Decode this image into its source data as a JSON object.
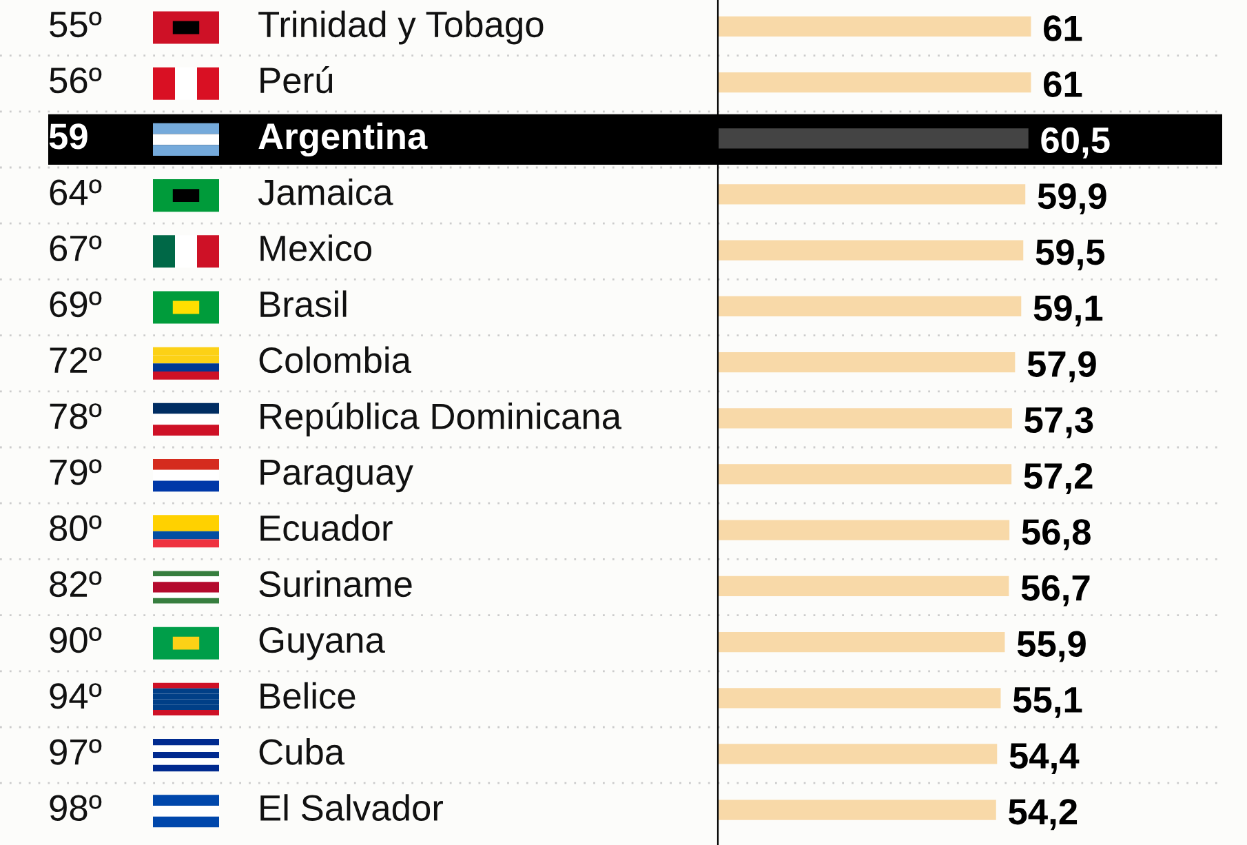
{
  "chart_data": {
    "type": "bar",
    "orientation": "horizontal",
    "categories": [
      "Trinidad y Tobago",
      "Perú",
      "Argentina",
      "Jamaica",
      "Mexico",
      "Brasil",
      "Colombia",
      "República Dominicana",
      "Paraguay",
      "Ecuador",
      "Suriname",
      "Guyana",
      "Belice",
      "Cuba",
      "El Salvador"
    ],
    "values": [
      61,
      61,
      60.5,
      59.9,
      59.5,
      59.1,
      57.9,
      57.3,
      57.2,
      56.8,
      56.7,
      55.9,
      55.1,
      54.4,
      54.2
    ],
    "colors": [
      "#f8d9a8",
      "#f8d9a8",
      "#444444",
      "#f8d9a8",
      "#f8d9a8",
      "#f8d9a8",
      "#f8d9a8",
      "#f8d9a8",
      "#f8d9a8",
      "#f8d9a8",
      "#f8d9a8",
      "#f8d9a8",
      "#f8d9a8",
      "#f8d9a8",
      "#f8d9a8"
    ],
    "value_labels": [
      "61",
      "61",
      "60,5",
      "59,9",
      "59,5",
      "59,1",
      "57,9",
      "57,3",
      "57,2",
      "56,8",
      "56,7",
      "55,9",
      "55,1",
      "54,4",
      "54,2"
    ],
    "annotations": [
      "55º",
      "56º",
      "59",
      "64º",
      "67º",
      "69º",
      "72º",
      "78º",
      "79º",
      "80º",
      "82º",
      "90º",
      "94º",
      "97º",
      "98º"
    ],
    "tick_labels": "y"
  }
}
